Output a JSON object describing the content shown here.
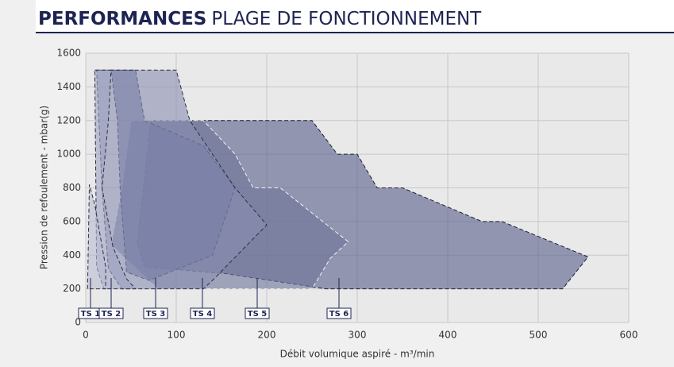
{
  "header": {
    "title_bold": "PERFORMANCES",
    "title_rest": "PLAGE DE FONCTIONNEMENT"
  },
  "chart_data": {
    "type": "envelope",
    "xlabel": "Débit volumique aspiré - m³/min",
    "ylabel": "Pression de refoulement - mbar(g)",
    "xlim": [
      0,
      600
    ],
    "xticks": [
      0,
      100,
      200,
      300,
      400,
      500,
      600
    ],
    "ylim": [
      0,
      1600
    ],
    "yticks": [
      0,
      200,
      400,
      600,
      800,
      1000,
      1200,
      1400,
      1600
    ],
    "grid": true,
    "series": [
      {
        "name": "TS 1",
        "color": "#b9bcd3",
        "stroke": "#2a2f45",
        "x": [
          2,
          4,
          10,
          22,
          22
        ],
        "y": [
          200,
          820,
          700,
          330,
          200
        ]
      },
      {
        "name": "TS 2",
        "color": "#9ea2c2",
        "stroke": "#2a2f45",
        "x": [
          10,
          28,
          25,
          18,
          30,
          45,
          55,
          20,
          12
        ],
        "y": [
          1500,
          1500,
          1200,
          800,
          450,
          260,
          200,
          200,
          330
        ]
      },
      {
        "name": "TS 3",
        "color": "#8a8fb2",
        "stroke": "#2a2f45",
        "x": [
          12,
          100,
          115,
          140,
          165,
          200,
          140,
          130,
          40,
          25,
          18
        ],
        "y": [
          1500,
          1500,
          1200,
          1000,
          800,
          580,
          250,
          200,
          200,
          320,
          800
        ]
      },
      {
        "name": "TS 4",
        "color": "#5d6592",
        "stroke": "#2a2f45",
        "x": [
          28,
          55,
          65,
          130,
          165,
          140,
          70,
          45,
          38,
          35
        ],
        "y": [
          1500,
          1500,
          1200,
          1050,
          800,
          400,
          250,
          300,
          800,
          1200
        ]
      },
      {
        "name": "TS 5",
        "color": "#6e7499",
        "stroke": "#f4f4f4",
        "x": [
          50,
          130,
          165,
          185,
          215,
          290,
          270,
          250,
          80,
          28,
          40
        ],
        "y": [
          1200,
          1200,
          1000,
          800,
          800,
          480,
          380,
          200,
          200,
          460,
          800
        ]
      },
      {
        "name": "TS 6",
        "color": "#565d8a",
        "stroke": "#1c2033",
        "x": [
          72,
          250,
          278,
          300,
          322,
          350,
          438,
          460,
          555,
          527,
          265,
          155,
          65,
          57
        ],
        "y": [
          1200,
          1200,
          1000,
          1000,
          800,
          800,
          600,
          600,
          390,
          200,
          200,
          290,
          330,
          470
        ]
      }
    ]
  }
}
